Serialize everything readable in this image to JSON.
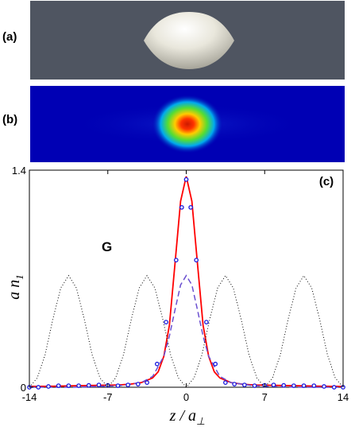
{
  "panels": {
    "a": {
      "label": "(a)"
    },
    "b": {
      "label": "(b)"
    },
    "c": {
      "label": "(c)"
    }
  },
  "colors": {
    "panel_a_background": "#4f5561",
    "surface": "#e8e6dc",
    "heatmap_background": "#0000b4",
    "solid_line": "#ff0000",
    "dashed_line": "#6a4fd0",
    "markers": "#1a1adf",
    "dotted_line": "#000000"
  },
  "chart_data": {
    "type": "line",
    "annotation": "G",
    "xlabel_main": "z / a",
    "xlabel_sub": "⊥",
    "ylabel_main": "a n",
    "ylabel_sub": "1",
    "xlim": [
      -14,
      14
    ],
    "ylim": [
      0,
      1.4
    ],
    "xticks": [
      -14,
      -7,
      0,
      7,
      14
    ],
    "yticks": [
      0,
      1.4
    ],
    "xtick_labels": [
      "-14",
      "-7",
      "0",
      "7",
      "14"
    ],
    "ytick_labels": [
      "0",
      "1.4"
    ],
    "series": [
      {
        "style": "solid",
        "color": "#ff0000",
        "x": [
          -14,
          -12,
          -10,
          -8,
          -6,
          -5,
          -4,
          -3,
          -2.5,
          -2,
          -1.5,
          -1,
          -0.5,
          0,
          0.5,
          1,
          1.5,
          2,
          2.5,
          3,
          4,
          5,
          6,
          8,
          10,
          12,
          14
        ],
        "y": [
          0.005,
          0.006,
          0.01,
          0.012,
          0.015,
          0.02,
          0.03,
          0.06,
          0.1,
          0.2,
          0.4,
          0.8,
          1.2,
          1.36,
          1.2,
          0.8,
          0.4,
          0.2,
          0.1,
          0.06,
          0.03,
          0.02,
          0.015,
          0.012,
          0.01,
          0.006,
          0.005
        ]
      },
      {
        "style": "dashed",
        "color": "#6a4fd0",
        "x": [
          -14,
          -10,
          -6,
          -4,
          -3,
          -2,
          -1.5,
          -1,
          -0.5,
          0,
          0.5,
          1,
          1.5,
          2,
          3,
          4,
          6,
          10,
          14
        ],
        "y": [
          0.0,
          0.0,
          0.01,
          0.03,
          0.07,
          0.2,
          0.33,
          0.5,
          0.66,
          0.72,
          0.66,
          0.5,
          0.33,
          0.2,
          0.07,
          0.03,
          0.01,
          0.0,
          0.0
        ]
      },
      {
        "style": "markers",
        "color": "#1a1adf",
        "x": [
          -14,
          -13.2,
          -12.3,
          -11.4,
          -10.5,
          -9.6,
          -8.7,
          -7.8,
          -7,
          -6.1,
          -5.2,
          -4.3,
          -3.5,
          -2.6,
          -1.8,
          -0.9,
          -0.4,
          0,
          0.4,
          0.9,
          1.8,
          2.6,
          3.5,
          4.3,
          5.2,
          6.1,
          7,
          7.8,
          8.7,
          9.6,
          10.5,
          11.4,
          12.3,
          13.2,
          14
        ],
        "y": [
          0.0,
          0.0,
          0.005,
          0.01,
          0.01,
          0.01,
          0.012,
          0.015,
          0.012,
          0.01,
          0.015,
          0.02,
          0.03,
          0.15,
          0.42,
          0.82,
          1.16,
          1.34,
          1.16,
          0.82,
          0.42,
          0.15,
          0.03,
          0.02,
          0.015,
          0.01,
          0.012,
          0.015,
          0.012,
          0.01,
          0.01,
          0.01,
          0.005,
          0.0,
          0.0
        ]
      },
      {
        "style": "dotted",
        "color": "#000000",
        "x": [
          -14,
          -13.3,
          -12.6,
          -11.9,
          -11.2,
          -10.5,
          -9.8,
          -9.1,
          -8.4,
          -7.7,
          -7,
          -6.3,
          -5.6,
          -4.9,
          -4.2,
          -3.5,
          -2.8,
          -2.1,
          -1.4,
          -0.7,
          0,
          0.7,
          1.4,
          2.1,
          2.8,
          3.5,
          4.2,
          4.9,
          5.6,
          6.3,
          7,
          7.7,
          8.4,
          9.1,
          9.8,
          10.5,
          11.2,
          11.9,
          12.6,
          13.3,
          14
        ],
        "y": [
          0.0,
          0.06,
          0.21,
          0.44,
          0.64,
          0.72,
          0.64,
          0.44,
          0.21,
          0.06,
          0.0,
          0.06,
          0.21,
          0.44,
          0.64,
          0.72,
          0.64,
          0.44,
          0.21,
          0.06,
          0.0,
          0.06,
          0.21,
          0.44,
          0.64,
          0.72,
          0.64,
          0.44,
          0.21,
          0.06,
          0.0,
          0.06,
          0.21,
          0.44,
          0.64,
          0.72,
          0.64,
          0.44,
          0.21,
          0.06,
          0.0
        ]
      }
    ]
  }
}
